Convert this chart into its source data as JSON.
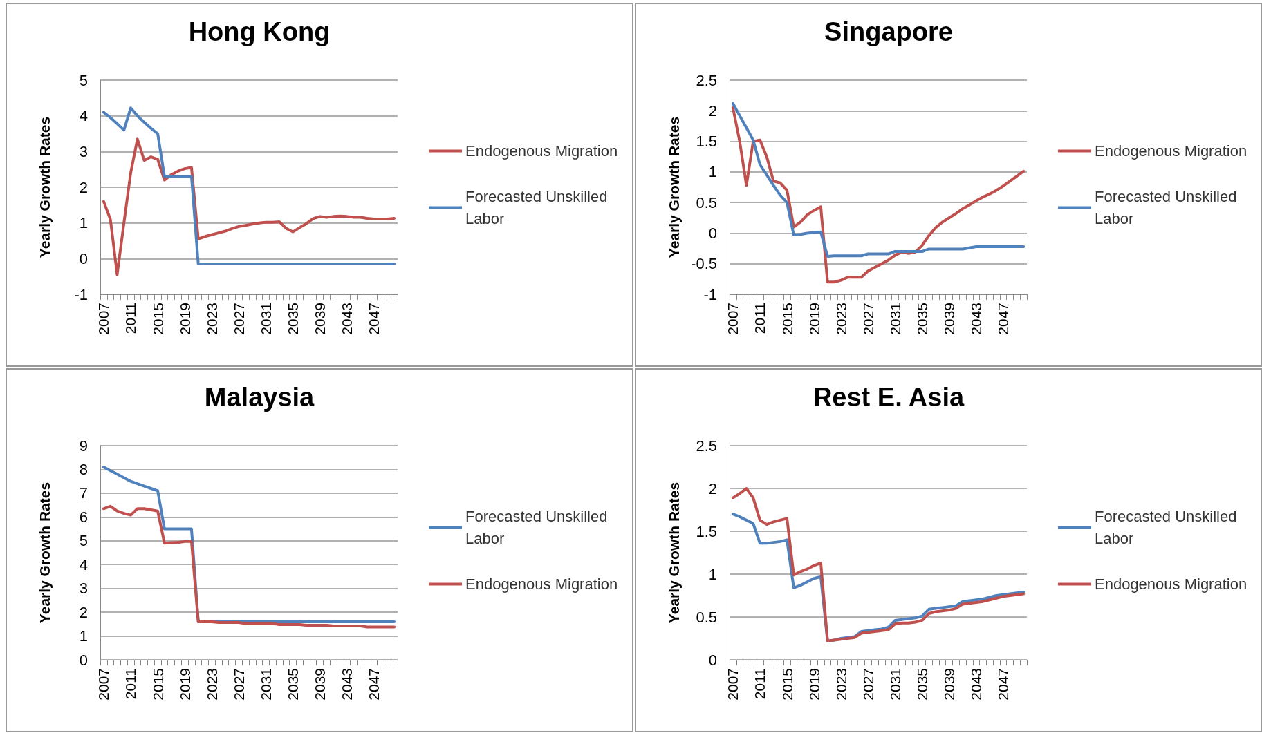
{
  "chart_data": [
    {
      "type": "line",
      "title": "Hong Kong",
      "ylabel": "Yearly Growth Rates",
      "categories": [
        "2007",
        null,
        null,
        null,
        "2011",
        null,
        null,
        null,
        "2015",
        null,
        null,
        null,
        "2019",
        null,
        null,
        null,
        "2023",
        null,
        null,
        null,
        "2027",
        null,
        null,
        null,
        "2031",
        null,
        null,
        null,
        "2035",
        null,
        null,
        null,
        "2039",
        null,
        null,
        null,
        "2043",
        null,
        null,
        null,
        "2047",
        null,
        null,
        null
      ],
      "series": [
        {
          "name": "Endogenous Migration",
          "color": "#c0504d",
          "values": [
            1.6,
            1.1,
            -0.45,
            1.0,
            2.4,
            3.35,
            2.75,
            2.85,
            2.78,
            2.2,
            2.35,
            2.45,
            2.52,
            2.55,
            0.55,
            0.62,
            0.67,
            0.72,
            0.77,
            0.84,
            0.9,
            0.93,
            0.97,
            1.0,
            1.02,
            1.02,
            1.03,
            0.85,
            0.75,
            0.87,
            0.98,
            1.12,
            1.18,
            1.16,
            1.18,
            1.19,
            1.18,
            1.16,
            1.16,
            1.13,
            1.11,
            1.11,
            1.11,
            1.13
          ]
        },
        {
          "name": "Forecasted Unskilled Labor",
          "color": "#4f81bd",
          "values": [
            4.1,
            3.95,
            3.78,
            3.6,
            4.22,
            4.0,
            3.82,
            3.65,
            3.5,
            2.3,
            2.3,
            2.3,
            2.3,
            2.3,
            -0.15,
            -0.15,
            -0.15,
            -0.15,
            -0.15,
            -0.15,
            -0.15,
            -0.15,
            -0.15,
            -0.15,
            -0.15,
            -0.15,
            -0.15,
            -0.15,
            -0.15,
            -0.15,
            -0.15,
            -0.15,
            -0.15,
            -0.15,
            -0.15,
            -0.15,
            -0.15,
            -0.15,
            -0.15,
            -0.15,
            -0.15,
            -0.15,
            -0.15,
            -0.15
          ]
        }
      ],
      "ylim": [
        -1,
        5
      ],
      "yticks": [
        -1,
        0,
        1,
        2,
        3,
        4,
        5
      ],
      "grid": "y",
      "legend": "right",
      "marker": "none"
    },
    {
      "type": "line",
      "title": "Singapore",
      "ylabel": "Yearly Growth Rates",
      "categories": [
        "2007",
        null,
        null,
        null,
        "2011",
        null,
        null,
        null,
        "2015",
        null,
        null,
        null,
        "2019",
        null,
        null,
        null,
        "2023",
        null,
        null,
        null,
        "2027",
        null,
        null,
        null,
        "2031",
        null,
        null,
        null,
        "2035",
        null,
        null,
        null,
        "2039",
        null,
        null,
        null,
        "2043",
        null,
        null,
        null,
        "2047",
        null,
        null,
        null
      ],
      "series": [
        {
          "name": "Endogenous Migration",
          "color": "#c0504d",
          "values": [
            2.05,
            1.5,
            0.78,
            1.5,
            1.52,
            1.25,
            0.85,
            0.82,
            0.7,
            0.1,
            0.18,
            0.3,
            0.37,
            0.43,
            -0.8,
            -0.8,
            -0.77,
            -0.72,
            -0.72,
            -0.72,
            -0.62,
            -0.56,
            -0.5,
            -0.44,
            -0.36,
            -0.31,
            -0.33,
            -0.31,
            -0.2,
            -0.04,
            0.09,
            0.18,
            0.25,
            0.32,
            0.4,
            0.46,
            0.53,
            0.59,
            0.64,
            0.7,
            0.77,
            0.85,
            0.93,
            1.01
          ]
        },
        {
          "name": "Forecasted Unskilled Labor",
          "color": "#4f81bd",
          "values": [
            2.12,
            1.92,
            1.72,
            1.52,
            1.12,
            0.95,
            0.78,
            0.62,
            0.5,
            -0.03,
            -0.02,
            0,
            0.01,
            0.02,
            -0.38,
            -0.37,
            -0.37,
            -0.37,
            -0.37,
            -0.37,
            -0.34,
            -0.34,
            -0.34,
            -0.34,
            -0.3,
            -0.3,
            -0.3,
            -0.3,
            -0.3,
            -0.26,
            -0.26,
            -0.26,
            -0.26,
            -0.26,
            -0.26,
            -0.24,
            -0.22,
            -0.22,
            -0.22,
            -0.22,
            -0.22,
            -0.22,
            -0.22,
            -0.22
          ]
        }
      ],
      "ylim": [
        -1,
        2.5
      ],
      "yticks": [
        -1,
        -0.5,
        0,
        0.5,
        1,
        1.5,
        2,
        2.5
      ],
      "grid": "y",
      "legend": "right",
      "marker": "none"
    },
    {
      "type": "line",
      "title": "Malaysia",
      "ylabel": "Yearly Growth Rates",
      "categories": [
        "2007",
        null,
        null,
        null,
        "2011",
        null,
        null,
        null,
        "2015",
        null,
        null,
        null,
        "2019",
        null,
        null,
        null,
        "2023",
        null,
        null,
        null,
        "2027",
        null,
        null,
        null,
        "2031",
        null,
        null,
        null,
        "2035",
        null,
        null,
        null,
        "2039",
        null,
        null,
        null,
        "2043",
        null,
        null,
        null,
        "2047",
        null,
        null,
        null
      ],
      "series": [
        {
          "name": "Forecasted Unskilled Labor",
          "color": "#4f81bd",
          "values": [
            8.1,
            7.95,
            7.8,
            7.65,
            7.5,
            7.4,
            7.3,
            7.2,
            7.1,
            5.5,
            5.5,
            5.5,
            5.5,
            5.5,
            1.6,
            1.6,
            1.6,
            1.6,
            1.6,
            1.6,
            1.6,
            1.6,
            1.6,
            1.6,
            1.6,
            1.6,
            1.6,
            1.6,
            1.6,
            1.6,
            1.6,
            1.6,
            1.6,
            1.6,
            1.6,
            1.6,
            1.6,
            1.6,
            1.6,
            1.6,
            1.6,
            1.6,
            1.6,
            1.6
          ]
        },
        {
          "name": "Endogenous Migration",
          "color": "#c0504d",
          "values": [
            6.35,
            6.45,
            6.25,
            6.15,
            6.08,
            6.35,
            6.35,
            6.3,
            6.25,
            4.9,
            4.92,
            4.93,
            4.97,
            4.97,
            1.6,
            1.6,
            1.6,
            1.57,
            1.57,
            1.57,
            1.57,
            1.52,
            1.52,
            1.52,
            1.52,
            1.52,
            1.48,
            1.48,
            1.48,
            1.48,
            1.45,
            1.45,
            1.45,
            1.45,
            1.42,
            1.42,
            1.42,
            1.42,
            1.42,
            1.38,
            1.38,
            1.38,
            1.38,
            1.38
          ]
        }
      ],
      "ylim": [
        0,
        9
      ],
      "yticks": [
        0,
        1,
        2,
        3,
        4,
        5,
        6,
        7,
        8,
        9
      ],
      "grid": "y",
      "legend": "right",
      "marker": "none"
    },
    {
      "type": "line",
      "title": "Rest E. Asia",
      "ylabel": "Yearly Growth Rates",
      "categories": [
        "2007",
        null,
        null,
        null,
        "2011",
        null,
        null,
        null,
        "2015",
        null,
        null,
        null,
        "2019",
        null,
        null,
        null,
        "2023",
        null,
        null,
        null,
        "2027",
        null,
        null,
        null,
        "2031",
        null,
        null,
        null,
        "2035",
        null,
        null,
        null,
        "2039",
        null,
        null,
        null,
        "2043",
        null,
        null,
        null,
        "2047",
        null,
        null,
        null
      ],
      "series": [
        {
          "name": "Forecasted Unskilled Labor",
          "color": "#4f81bd",
          "values": [
            1.7,
            1.67,
            1.63,
            1.59,
            1.36,
            1.36,
            1.37,
            1.38,
            1.4,
            0.84,
            0.87,
            0.91,
            0.95,
            0.97,
            0.22,
            0.23,
            0.25,
            0.26,
            0.27,
            0.33,
            0.34,
            0.35,
            0.36,
            0.38,
            0.46,
            0.47,
            0.48,
            0.49,
            0.51,
            0.59,
            0.6,
            0.61,
            0.62,
            0.63,
            0.68,
            0.69,
            0.7,
            0.71,
            0.73,
            0.75,
            0.76,
            0.77,
            0.78,
            0.79
          ]
        },
        {
          "name": "Endogenous Migration",
          "color": "#c0504d",
          "values": [
            1.89,
            1.94,
            2.0,
            1.89,
            1.63,
            1.58,
            1.61,
            1.63,
            1.65,
            0.99,
            1.03,
            1.06,
            1.1,
            1.13,
            0.22,
            0.23,
            0.24,
            0.25,
            0.26,
            0.31,
            0.32,
            0.33,
            0.34,
            0.35,
            0.42,
            0.43,
            0.43,
            0.44,
            0.46,
            0.54,
            0.56,
            0.57,
            0.58,
            0.6,
            0.65,
            0.66,
            0.67,
            0.68,
            0.7,
            0.72,
            0.74,
            0.75,
            0.76,
            0.77
          ]
        }
      ],
      "ylim": [
        0,
        2.5
      ],
      "yticks": [
        0,
        0.5,
        1,
        1.5,
        2,
        2.5
      ],
      "grid": "y",
      "legend": "right",
      "marker": "none"
    }
  ]
}
